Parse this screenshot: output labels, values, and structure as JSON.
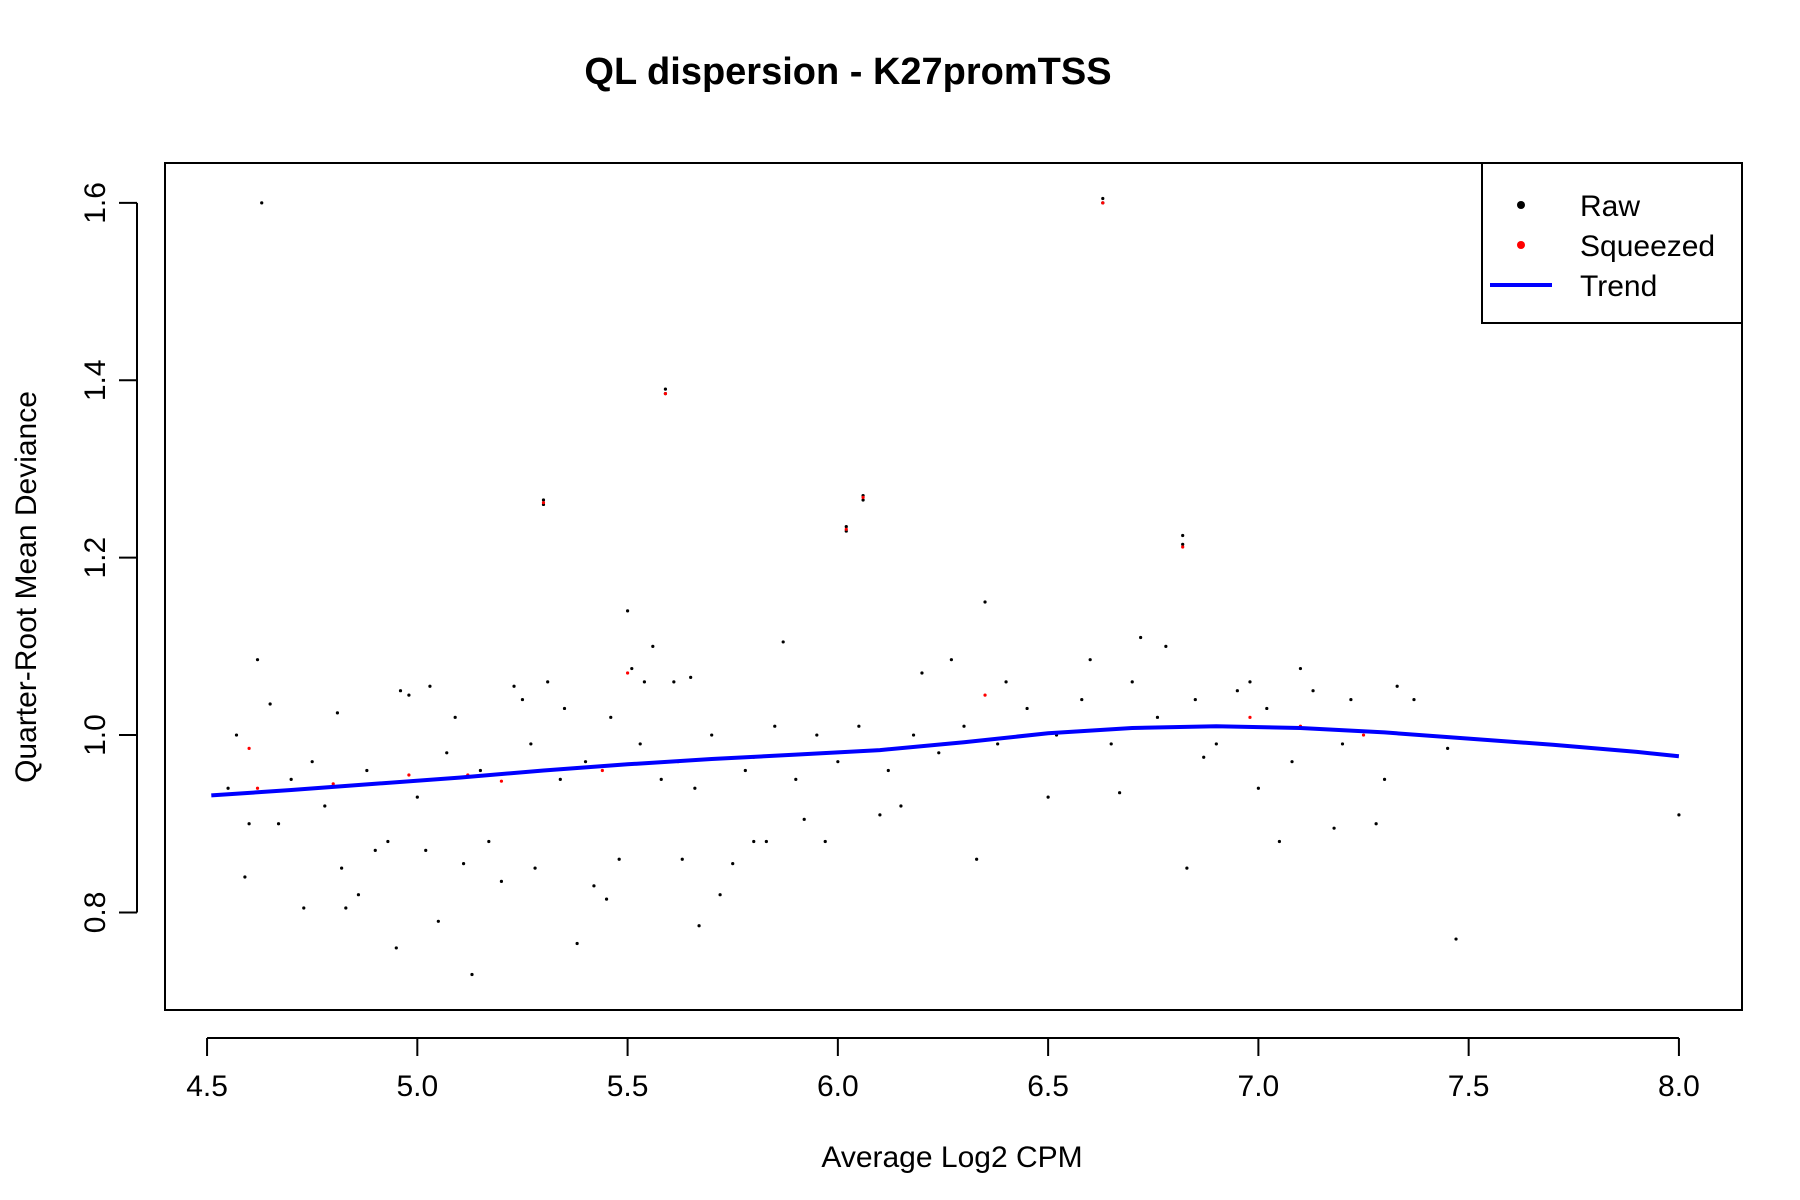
{
  "chart_data": {
    "type": "scatter",
    "title": "QL dispersion - K27promTSS",
    "xlabel": "Average Log2 CPM",
    "ylabel": "Quarter-Root Mean Deviance",
    "xlim": [
      4.4,
      8.15
    ],
    "ylim": [
      0.69,
      1.645
    ],
    "x_ticks": [
      "4.5",
      "5.0",
      "5.5",
      "6.0",
      "6.5",
      "7.0",
      "7.5",
      "8.0"
    ],
    "y_ticks": [
      "0.8",
      "1.0",
      "1.2",
      "1.4",
      "1.6"
    ],
    "grid": false,
    "legend_position": "top-right",
    "legend": [
      {
        "label": "Raw",
        "kind": "point",
        "color": "#000000"
      },
      {
        "label": "Squeezed",
        "kind": "point",
        "color": "#ff0000"
      },
      {
        "label": "Trend",
        "kind": "line",
        "color": "#0000ff"
      }
    ],
    "series": [
      {
        "name": "Raw",
        "color": "#000000",
        "points": [
          [
            4.63,
            1.6
          ],
          [
            4.57,
            1.0
          ],
          [
            4.59,
            0.84
          ],
          [
            4.6,
            0.9
          ],
          [
            4.62,
            1.085
          ],
          [
            4.65,
            1.035
          ],
          [
            4.67,
            0.9
          ],
          [
            4.73,
            0.805
          ],
          [
            4.78,
            0.92
          ],
          [
            4.81,
            1.025
          ],
          [
            4.82,
            0.85
          ],
          [
            4.83,
            0.805
          ],
          [
            4.86,
            0.82
          ],
          [
            4.9,
            0.87
          ],
          [
            4.93,
            0.88
          ],
          [
            4.95,
            0.76
          ],
          [
            4.96,
            1.05
          ],
          [
            4.98,
            1.045
          ],
          [
            5.02,
            0.87
          ],
          [
            5.03,
            1.055
          ],
          [
            5.05,
            0.79
          ],
          [
            5.09,
            1.02
          ],
          [
            5.11,
            0.855
          ],
          [
            5.13,
            0.73
          ],
          [
            5.17,
            0.88
          ],
          [
            5.2,
            0.835
          ],
          [
            5.23,
            1.055
          ],
          [
            5.25,
            1.04
          ],
          [
            5.28,
            0.85
          ],
          [
            5.3,
            1.265
          ],
          [
            5.3,
            1.26
          ],
          [
            5.31,
            1.06
          ],
          [
            5.35,
            1.03
          ],
          [
            5.38,
            0.765
          ],
          [
            5.42,
            0.83
          ],
          [
            5.45,
            0.815
          ],
          [
            5.48,
            0.86
          ],
          [
            5.5,
            1.14
          ],
          [
            5.51,
            1.075
          ],
          [
            5.54,
            1.06
          ],
          [
            5.56,
            1.1
          ],
          [
            5.59,
            1.39
          ],
          [
            5.59,
            1.385
          ],
          [
            5.61,
            1.06
          ],
          [
            5.63,
            0.86
          ],
          [
            5.65,
            1.065
          ],
          [
            5.67,
            0.785
          ],
          [
            5.72,
            0.82
          ],
          [
            5.75,
            0.855
          ],
          [
            5.8,
            0.88
          ],
          [
            5.83,
            0.88
          ],
          [
            5.87,
            1.105
          ],
          [
            5.92,
            0.905
          ],
          [
            5.97,
            0.88
          ],
          [
            6.02,
            1.235
          ],
          [
            6.02,
            1.23
          ],
          [
            6.06,
            1.27
          ],
          [
            6.06,
            1.265
          ],
          [
            6.1,
            0.91
          ],
          [
            6.15,
            0.92
          ],
          [
            6.2,
            1.07
          ],
          [
            6.27,
            1.085
          ],
          [
            6.33,
            0.86
          ],
          [
            6.35,
            1.15
          ],
          [
            6.4,
            1.06
          ],
          [
            6.5,
            0.93
          ],
          [
            6.6,
            1.085
          ],
          [
            6.63,
            1.6
          ],
          [
            6.63,
            1.605
          ],
          [
            6.67,
            0.935
          ],
          [
            6.72,
            1.11
          ],
          [
            6.78,
            1.1
          ],
          [
            6.82,
            1.225
          ],
          [
            6.82,
            1.215
          ],
          [
            6.83,
            0.85
          ],
          [
            6.87,
            0.975
          ],
          [
            6.95,
            1.05
          ],
          [
            7.0,
            0.94
          ],
          [
            7.05,
            0.88
          ],
          [
            7.1,
            1.075
          ],
          [
            7.18,
            0.895
          ],
          [
            7.22,
            1.04
          ],
          [
            7.28,
            0.9
          ],
          [
            7.3,
            0.95
          ],
          [
            7.33,
            1.055
          ],
          [
            7.37,
            1.04
          ],
          [
            7.45,
            0.985
          ],
          [
            7.47,
            0.77
          ],
          [
            8.0,
            0.91
          ],
          [
            4.55,
            0.94
          ],
          [
            4.7,
            0.95
          ],
          [
            4.75,
            0.97
          ],
          [
            4.88,
            0.96
          ],
          [
            5.0,
            0.93
          ],
          [
            5.07,
            0.98
          ],
          [
            5.15,
            0.96
          ],
          [
            5.27,
            0.99
          ],
          [
            5.34,
            0.95
          ],
          [
            5.4,
            0.97
          ],
          [
            5.46,
            1.02
          ],
          [
            5.53,
            0.99
          ],
          [
            5.58,
            0.95
          ],
          [
            5.66,
            0.94
          ],
          [
            5.7,
            1.0
          ],
          [
            5.78,
            0.96
          ],
          [
            5.85,
            1.01
          ],
          [
            5.9,
            0.95
          ],
          [
            5.95,
            1.0
          ],
          [
            6.0,
            0.97
          ],
          [
            6.05,
            1.01
          ],
          [
            6.12,
            0.96
          ],
          [
            6.18,
            1.0
          ],
          [
            6.24,
            0.98
          ],
          [
            6.3,
            1.01
          ],
          [
            6.38,
            0.99
          ],
          [
            6.45,
            1.03
          ],
          [
            6.52,
            1.0
          ],
          [
            6.58,
            1.04
          ],
          [
            6.65,
            0.99
          ],
          [
            6.7,
            1.06
          ],
          [
            6.76,
            1.02
          ],
          [
            6.85,
            1.04
          ],
          [
            6.9,
            0.99
          ],
          [
            6.98,
            1.06
          ],
          [
            7.02,
            1.03
          ],
          [
            7.08,
            0.97
          ],
          [
            7.13,
            1.05
          ],
          [
            7.2,
            0.99
          ]
        ]
      },
      {
        "name": "Squeezed",
        "color": "#ff0000",
        "points": [
          [
            4.6,
            0.985
          ],
          [
            4.62,
            0.94
          ],
          [
            4.8,
            0.945
          ],
          [
            4.98,
            0.955
          ],
          [
            5.12,
            0.955
          ],
          [
            5.2,
            0.948
          ],
          [
            5.3,
            1.262
          ],
          [
            5.44,
            0.96
          ],
          [
            5.5,
            1.07
          ],
          [
            5.59,
            1.385
          ],
          [
            5.62,
            0.97
          ],
          [
            5.8,
            0.975
          ],
          [
            6.02,
            1.232
          ],
          [
            6.06,
            1.268
          ],
          [
            6.25,
            0.99
          ],
          [
            6.35,
            1.045
          ],
          [
            6.6,
            1.005
          ],
          [
            6.63,
            1.6
          ],
          [
            6.82,
            1.212
          ],
          [
            6.98,
            1.02
          ],
          [
            7.1,
            1.01
          ],
          [
            7.25,
            1.0
          ]
        ]
      },
      {
        "name": "Trend",
        "color": "#0000ff",
        "kind": "line",
        "points": [
          [
            4.51,
            0.932
          ],
          [
            4.7,
            0.938
          ],
          [
            4.9,
            0.945
          ],
          [
            5.1,
            0.952
          ],
          [
            5.3,
            0.96
          ],
          [
            5.5,
            0.967
          ],
          [
            5.7,
            0.973
          ],
          [
            5.9,
            0.978
          ],
          [
            6.1,
            0.983
          ],
          [
            6.3,
            0.992
          ],
          [
            6.5,
            1.002
          ],
          [
            6.7,
            1.008
          ],
          [
            6.9,
            1.01
          ],
          [
            7.1,
            1.008
          ],
          [
            7.3,
            1.003
          ],
          [
            7.5,
            0.996
          ],
          [
            7.7,
            0.989
          ],
          [
            7.9,
            0.981
          ],
          [
            8.0,
            0.976
          ]
        ]
      }
    ]
  }
}
